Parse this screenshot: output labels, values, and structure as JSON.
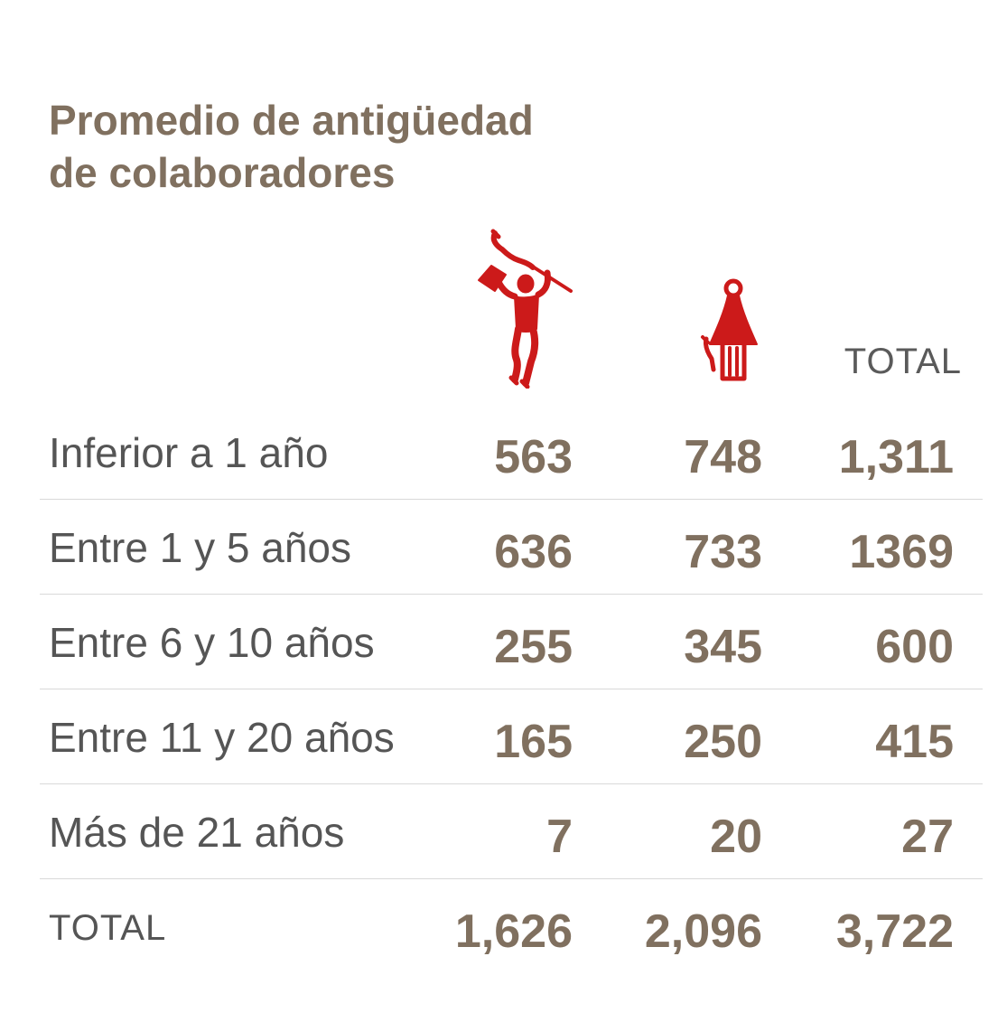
{
  "title": {
    "line1": "Promedio de antigüedad",
    "line2": "de colaboradores"
  },
  "columns": {
    "men_icon": "man-waving-flag-icon",
    "women_icon": "woman-figure-icon",
    "total_label": "TOTAL"
  },
  "colors": {
    "title": "#80705f",
    "values": "#80705f",
    "icons": "#cc1a1a",
    "dividers": "#d9d9d9"
  },
  "chart_data": {
    "type": "table",
    "title": "Promedio de antigüedad de colaboradores",
    "columns": [
      "men",
      "women",
      "TOTAL"
    ],
    "rows": [
      {
        "label": "Inferior a 1 año",
        "men": "563",
        "women": "748",
        "total": "1,311"
      },
      {
        "label": "Entre 1 y 5 años",
        "men": "636",
        "women": "733",
        "total": "1369"
      },
      {
        "label": "Entre 6 y 10 años",
        "men": "255",
        "women": "345",
        "total": "600"
      },
      {
        "label": "Entre 11 y 20 años",
        "men": "165",
        "women": "250",
        "total": "415"
      },
      {
        "label": "Más de 21 años",
        "men": "7",
        "women": "20",
        "total": "27"
      }
    ],
    "totals": {
      "label": "TOTAL",
      "men": "1,626",
      "women": "2,096",
      "total": "3,722"
    }
  }
}
